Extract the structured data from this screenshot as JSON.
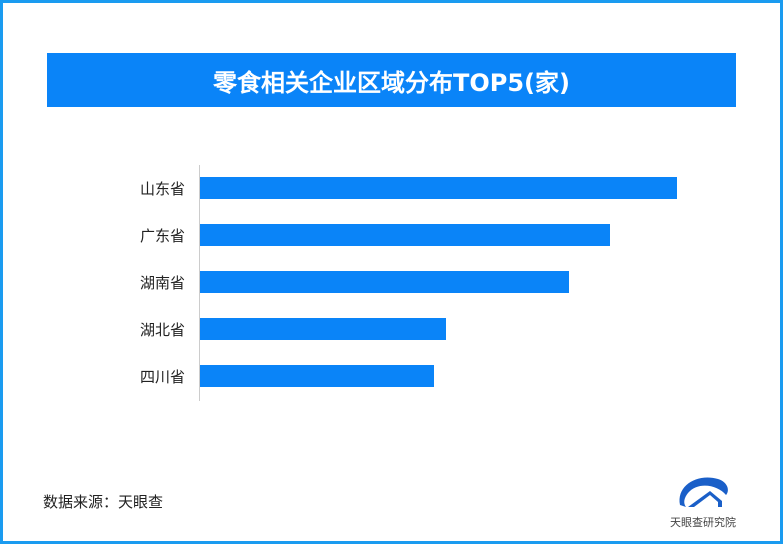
{
  "chart_data": {
    "type": "bar",
    "orientation": "horizontal",
    "title": "零食相关企业区域分布TOP5(家)",
    "categories": [
      "山东省",
      "广东省",
      "湖南省",
      "湖北省",
      "四川省"
    ],
    "values": [
      100,
      86,
      77.4,
      51.6,
      49.1
    ],
    "value_scale": "relative (no axis printed)",
    "grid": false,
    "bar_color": "#0a84f8"
  },
  "footer": {
    "source": "数据来源：天眼查",
    "logo_text": "天眼查研究院"
  }
}
